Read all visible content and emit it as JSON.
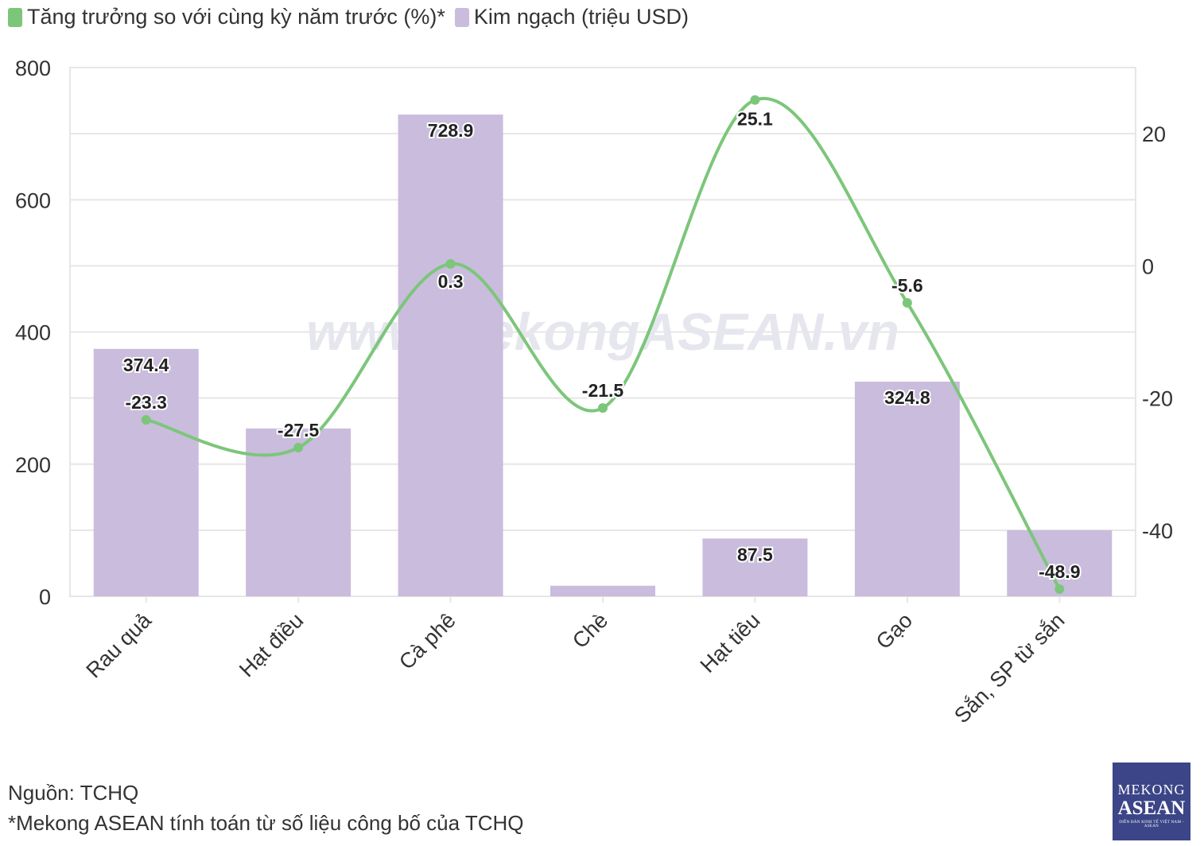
{
  "legend": {
    "growth_label": "Tăng trưởng so với cùng kỳ năm trước (%)*",
    "value_label": "Kim ngạch (triệu USD)"
  },
  "colors": {
    "bar": "#c9bcdd",
    "line": "#7cc67a",
    "grid": "#e6e6e6",
    "text": "#333333",
    "watermark": "#e6e6ef",
    "logo_bg": "#3b4587"
  },
  "watermark": "www.MekongASEAN.vn",
  "footer": {
    "source": "Nguồn: TCHQ",
    "note": "*Mekong ASEAN tính toán từ số liệu công bố của TCHQ"
  },
  "logo": {
    "line1": "MEKONG",
    "line2": "ASEAN",
    "line3": "DIỄN ĐÀN KINH TẾ VIỆT NAM - ASEAN"
  },
  "chart_data": {
    "type": "bar",
    "categories": [
      "Rau quả",
      "Hạt điều",
      "Cà phê",
      "Chè",
      "Hạt tiêu",
      "Gạo",
      "Sắn, SP từ sắn"
    ],
    "series": [
      {
        "name": "Kim ngạch (triệu USD)",
        "type": "bar",
        "axis": "left",
        "values": [
          374.4,
          254,
          728.9,
          16,
          87.5,
          324.8,
          100
        ],
        "labels": [
          "374.4",
          "",
          "728.9",
          "",
          "87.5",
          "324.8",
          ""
        ]
      },
      {
        "name": "Tăng trưởng so với cùng kỳ năm trước (%)*",
        "type": "line",
        "axis": "right",
        "values": [
          -23.3,
          -27.5,
          0.3,
          -21.5,
          25.1,
          -5.6,
          -48.9
        ],
        "labels": [
          "-23.3",
          "-27.5",
          "0.3",
          "-21.5",
          "25.1",
          "-5.6",
          "-48.9"
        ]
      }
    ],
    "y_left": {
      "ylim": [
        0,
        800
      ],
      "ticks": [
        "0",
        "200",
        "400",
        "600",
        "800"
      ]
    },
    "y_right": {
      "ylim": [
        -50,
        30
      ],
      "ticks": [
        "-40",
        "-20",
        "0",
        "20"
      ]
    },
    "grid": true,
    "legend_position": "top-left"
  }
}
